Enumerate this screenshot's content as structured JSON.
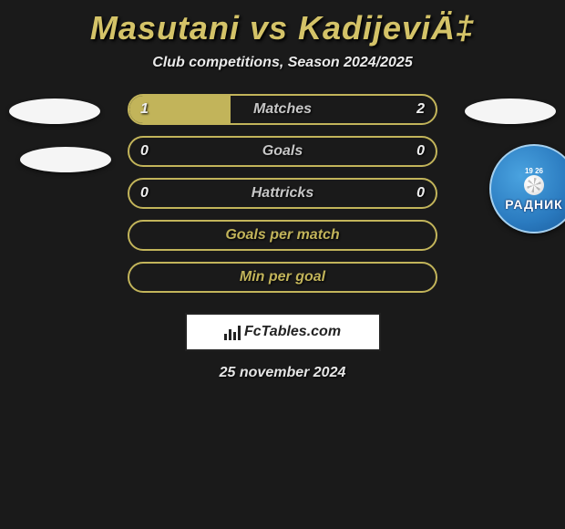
{
  "title": "Masutani vs KadijeviÄ‡",
  "subtitle": "Club competitions, Season 2024/2025",
  "date": "25 november 2024",
  "fctables_label": "FcTables.com",
  "accent_color": "#c2b45a",
  "title_color": "#d4c368",
  "background_color": "#1a1a1a",
  "club_logo": {
    "small_text": "19    26",
    "main_text": "РАДНИК",
    "sub_text": ""
  },
  "stats": [
    {
      "label": "Matches",
      "left_value": "1",
      "right_value": "2",
      "left_pct": 33,
      "right_pct": 0,
      "type": "dual"
    },
    {
      "label": "Goals",
      "left_value": "0",
      "right_value": "0",
      "left_pct": 0,
      "right_pct": 0,
      "type": "dual"
    },
    {
      "label": "Hattricks",
      "left_value": "0",
      "right_value": "0",
      "left_pct": 0,
      "right_pct": 0,
      "type": "dual"
    },
    {
      "label": "Goals per match",
      "type": "label"
    },
    {
      "label": "Min per goal",
      "type": "label"
    }
  ]
}
